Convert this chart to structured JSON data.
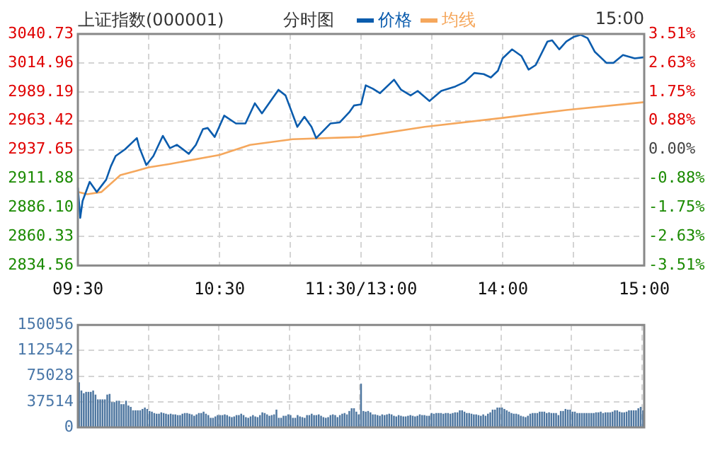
{
  "chart_data": [
    {
      "type": "line",
      "title": "上证指数(000001)",
      "subtitle": "分时图",
      "annotations": [
        "15:00"
      ],
      "legend": "top",
      "grid": true,
      "categories": [
        "09:30",
        null,
        null,
        null,
        null,
        null,
        null,
        null,
        null,
        null,
        null,
        null,
        null,
        null,
        null,
        null,
        null,
        null,
        null,
        null,
        null,
        null,
        null,
        null,
        null,
        null,
        null,
        null,
        null,
        null,
        null,
        null,
        null,
        null,
        null,
        null,
        null,
        null,
        null,
        null,
        null,
        null,
        null,
        null,
        null,
        null,
        null,
        null,
        null,
        null,
        null,
        null,
        null,
        null,
        null,
        null,
        null,
        null,
        null,
        null,
        "10:30",
        null,
        null,
        null,
        null,
        null,
        null,
        null,
        null,
        null,
        null,
        null,
        null,
        null,
        null,
        null,
        null,
        null,
        null,
        null,
        null,
        null,
        null,
        null,
        null,
        null,
        null,
        null,
        null,
        null,
        null,
        null,
        null,
        null,
        null,
        null,
        null,
        null,
        null,
        null,
        null,
        null,
        null,
        null,
        null,
        null,
        null,
        null,
        null,
        null,
        null,
        null,
        null,
        null,
        null,
        null,
        null,
        null,
        null,
        null,
        "11:30/13:00",
        null,
        null,
        null,
        null,
        null,
        null,
        null,
        null,
        null,
        null,
        null,
        null,
        null,
        null,
        null,
        null,
        null,
        null,
        null,
        null,
        null,
        null,
        null,
        null,
        null,
        null,
        null,
        null,
        null,
        null,
        null,
        null,
        null,
        null,
        null,
        null,
        null,
        null,
        null,
        null,
        null,
        null,
        null,
        null,
        null,
        null,
        null,
        null,
        null,
        null,
        null,
        null,
        null,
        null,
        null,
        null,
        null,
        null,
        null,
        "14:00",
        null,
        null,
        null,
        null,
        null,
        null,
        null,
        null,
        null,
        null,
        null,
        null,
        null,
        null,
        null,
        null,
        null,
        null,
        null,
        null,
        null,
        null,
        null,
        null,
        null,
        null,
        null,
        null,
        null,
        null,
        null,
        null,
        null,
        null,
        null,
        null,
        null,
        null,
        null,
        null,
        null,
        null,
        null,
        null,
        null,
        null,
        null,
        null,
        null,
        null,
        null,
        null,
        null,
        null,
        null,
        null,
        null,
        null,
        null,
        "15:00"
      ],
      "ylim": [
        2834.56,
        3040.73
      ],
      "yticks": [
        2834.56,
        2860.33,
        {
          "value": 2886.1,
          "label": "2886.10"
        },
        2911.88,
        2937.65,
        2963.42,
        2989.19,
        3014.96,
        3040.73
      ],
      "y2lim": [
        -3.51,
        3.51
      ],
      "y2ticks": [
        {
          "value": -3.51,
          "label": "-3.51%"
        },
        {
          "value": -2.63,
          "label": "-2.63%"
        },
        {
          "value": -1.75,
          "label": "-1.75%"
        },
        {
          "value": -0.88,
          "label": "-0.88%"
        },
        {
          "value": 0,
          "label": "0.00%"
        },
        {
          "value": 0.88,
          "label": "0.88%"
        },
        {
          "value": 1.75,
          "label": "1.75%"
        },
        {
          "value": 2.63,
          "label": "2.63%"
        },
        {
          "value": 3.51,
          "label": "3.51%"
        }
      ],
      "series": [
        {
          "name": "价格",
          "color": "#0b5cad",
          "values": [
            2904,
            2877,
            2892,
            null,
            null,
            2909,
            null,
            null,
            2900,
            null,
            null,
            null,
            2911,
            null,
            2923,
            null,
            2932,
            null,
            null,
            null,
            2938,
            null,
            null,
            null,
            null,
            2948,
            2940,
            null,
            null,
            2924,
            null,
            null,
            2932,
            null,
            null,
            null,
            2950,
            null,
            null,
            2939,
            null,
            null,
            2942,
            null,
            null,
            null,
            null,
            2934,
            null,
            null,
            2942,
            null,
            null,
            2956,
            null,
            2957,
            null,
            null,
            2949,
            null,
            null,
            null,
            2968,
            null,
            null,
            null,
            null,
            2961,
            null,
            null,
            null,
            2961,
            null,
            null,
            null,
            2979,
            null,
            null,
            2970,
            null,
            null,
            2979,
            null,
            null,
            null,
            2991,
            null,
            null,
            2986,
            null,
            null,
            null,
            null,
            2958,
            null,
            null,
            2967,
            null,
            null,
            2958,
            null,
            2948,
            null,
            null,
            null,
            null,
            null,
            2961,
            null,
            null,
            null,
            2962,
            null,
            null,
            null,
            2971,
            null,
            2977,
            null,
            null,
            2978,
            null,
            2995,
            null,
            null,
            2992,
            null,
            null,
            2988,
            null,
            null,
            null,
            null,
            null,
            3000,
            null,
            null,
            2991,
            null,
            null,
            null,
            2986,
            null,
            null,
            2990,
            null,
            null,
            null,
            null,
            2981,
            null,
            null,
            null,
            null,
            2990,
            null,
            null,
            null,
            null,
            null,
            2994,
            null,
            null,
            null,
            2998,
            null,
            null,
            null,
            3006,
            null,
            null,
            null,
            3005,
            null,
            null,
            3002,
            null,
            null,
            3008,
            null,
            3019,
            null,
            null,
            null,
            3027,
            null,
            null,
            null,
            3021,
            null,
            null,
            3009,
            null,
            null,
            3013,
            null,
            null,
            null,
            null,
            3034,
            null,
            3035,
            null,
            null,
            3027,
            null,
            null,
            3034,
            null,
            null,
            3038,
            null,
            null,
            3040,
            null,
            null,
            3037,
            null,
            null,
            3025,
            null,
            null,
            null,
            null,
            3015,
            null,
            null,
            3015,
            null,
            null,
            null,
            3022,
            null,
            null,
            null,
            null,
            3019,
            null,
            null,
            null,
            3020
          ]
        },
        {
          "name": "均线",
          "color": "#f5a75c",
          "values": [
            2900,
            null,
            null,
            null,
            2898,
            null,
            null,
            null,
            null,
            null,
            2900,
            null,
            null,
            null,
            null,
            null,
            null,
            null,
            2915,
            null,
            null,
            null,
            null,
            null,
            null,
            2919,
            null,
            null,
            null,
            null,
            2922,
            null,
            null,
            null,
            null,
            null,
            null,
            null,
            null,
            2925,
            null,
            null,
            null,
            null,
            null,
            null,
            null,
            null,
            null,
            null,
            null,
            null,
            null,
            null,
            null,
            null,
            null,
            null,
            null,
            null,
            2933,
            null,
            null,
            null,
            null,
            null,
            null,
            null,
            null,
            null,
            null,
            null,
            null,
            2942,
            null,
            null,
            null,
            null,
            null,
            null,
            null,
            null,
            null,
            null,
            null,
            null,
            null,
            null,
            null,
            null,
            null,
            2947,
            null,
            null,
            null,
            null,
            null,
            null,
            null,
            null,
            null,
            null,
            null,
            null,
            null,
            null,
            null,
            null,
            null,
            null,
            null,
            null,
            null,
            null,
            null,
            null,
            null,
            null,
            null,
            2949,
            null,
            null,
            null,
            null,
            null,
            null,
            null,
            null,
            null,
            null,
            null,
            null,
            null,
            null,
            null,
            null,
            null,
            null,
            null,
            null,
            null,
            null,
            null,
            null,
            null,
            null,
            null,
            2958,
            null,
            null,
            null,
            null,
            null,
            null,
            null,
            null,
            null,
            null,
            null,
            null,
            null,
            null,
            null,
            null,
            null,
            null,
            null,
            null,
            null,
            null,
            null,
            null,
            null,
            null,
            null,
            null,
            null,
            null,
            null,
            null,
            2966,
            null,
            null,
            null,
            null,
            null,
            null,
            null,
            null,
            null,
            null,
            null,
            null,
            null,
            null,
            null,
            null,
            null,
            null,
            null,
            null,
            null,
            null,
            null,
            null,
            null,
            null,
            2973,
            null,
            null,
            null,
            null,
            null,
            null,
            null,
            null,
            null,
            null,
            null,
            null,
            null,
            null,
            null,
            null,
            null,
            null,
            null,
            null,
            null,
            null,
            null,
            null,
            null,
            null,
            null,
            null,
            null,
            null,
            null,
            null,
            2980
          ]
        }
      ]
    },
    {
      "type": "bar",
      "grid": true,
      "tick_labels": "y",
      "color": "#4f77a0",
      "categories": [
        null,
        null,
        null,
        null,
        null,
        null,
        null,
        null,
        null,
        null,
        null,
        null,
        null,
        null,
        null,
        null,
        null,
        null,
        null,
        null,
        null,
        null,
        null,
        null,
        null,
        null,
        null,
        null,
        null,
        null,
        null,
        null,
        null,
        null,
        null,
        null,
        null,
        null,
        null,
        null,
        null,
        null,
        null,
        null,
        null,
        null,
        null,
        null,
        null,
        null,
        null,
        null,
        null,
        null,
        null,
        null,
        null,
        null,
        null,
        null,
        null,
        null,
        null,
        null,
        null,
        null,
        null,
        null,
        null,
        null,
        null,
        null,
        null,
        null,
        null,
        null,
        null,
        null,
        null,
        null,
        null,
        null,
        null,
        null,
        null,
        null,
        null,
        null,
        null,
        null,
        null,
        null,
        null,
        null,
        null,
        null,
        null,
        null,
        null,
        null,
        null,
        null,
        null,
        null,
        null,
        null,
        null,
        null,
        null,
        null,
        null,
        null,
        null,
        null,
        null,
        null,
        null,
        null,
        null,
        null,
        null,
        null,
        null,
        null,
        null,
        null,
        null,
        null,
        null,
        null,
        null,
        null,
        null,
        null,
        null,
        null,
        null,
        null,
        null,
        null,
        null,
        null,
        null,
        null,
        null,
        null,
        null,
        null,
        null,
        null,
        null,
        null,
        null,
        null,
        null,
        null,
        null,
        null,
        null,
        null,
        null,
        null,
        null,
        null,
        null,
        null,
        null,
        null,
        null,
        null,
        null,
        null,
        null,
        null,
        null,
        null,
        null,
        null,
        null,
        null,
        null,
        null,
        null,
        null,
        null,
        null,
        null,
        null,
        null,
        null,
        null,
        null,
        null,
        null,
        null,
        null,
        null,
        null,
        null,
        null,
        null,
        null,
        null,
        null,
        null,
        null,
        null,
        null,
        null,
        null,
        null,
        null,
        null,
        null,
        null,
        null,
        null,
        null,
        null,
        null,
        null,
        null,
        null,
        null,
        null,
        null,
        null,
        null,
        null,
        null,
        null,
        null,
        null,
        null,
        null,
        null,
        null,
        null,
        null,
        null,
        null
      ],
      "ylim": [
        0,
        150056
      ],
      "yticks": [
        0,
        37514,
        75028,
        112542,
        150056
      ],
      "values": [
        66000,
        54000,
        50000,
        52000,
        52000,
        52000,
        54000,
        48000,
        41000,
        41000,
        41000,
        41000,
        48000,
        49000,
        37000,
        37000,
        39000,
        39000,
        34000,
        34000,
        39000,
        32000,
        30000,
        25000,
        25000,
        25000,
        25000,
        27000,
        29000,
        27000,
        24000,
        23000,
        21000,
        20000,
        20000,
        22000,
        21000,
        20000,
        19000,
        20000,
        19000,
        19000,
        18000,
        18000,
        20000,
        21000,
        21000,
        20000,
        19000,
        17000,
        19000,
        21000,
        21000,
        23000,
        20000,
        18000,
        14000,
        14000,
        16000,
        18000,
        18000,
        18000,
        19000,
        18000,
        16000,
        15000,
        16000,
        18000,
        18000,
        20000,
        18000,
        15000,
        14000,
        16000,
        18000,
        16000,
        15000,
        18000,
        22000,
        21000,
        19000,
        17000,
        18000,
        19000,
        26000,
        14000,
        14000,
        17000,
        17000,
        19000,
        18000,
        14000,
        14000,
        18000,
        16000,
        15000,
        14000,
        18000,
        18000,
        20000,
        18000,
        18000,
        19000,
        17000,
        15000,
        14000,
        15000,
        18000,
        19000,
        18000,
        15000,
        18000,
        20000,
        21000,
        19000,
        24000,
        28000,
        28000,
        23000,
        19000,
        64000,
        24000,
        23000,
        24000,
        22000,
        19000,
        19000,
        18000,
        17000,
        19000,
        18000,
        19000,
        20000,
        19000,
        17000,
        16000,
        18000,
        17000,
        16000,
        16000,
        17000,
        18000,
        17000,
        16000,
        17000,
        19000,
        18000,
        18000,
        17000,
        17000,
        21000,
        20000,
        21000,
        21000,
        21000,
        20000,
        21000,
        21000,
        20000,
        21000,
        22000,
        22000,
        25000,
        25000,
        23000,
        21000,
        21000,
        20000,
        19000,
        19000,
        18000,
        17000,
        19000,
        17000,
        20000,
        22000,
        26000,
        26000,
        29000,
        29000,
        29000,
        27000,
        25000,
        23000,
        21000,
        20000,
        20000,
        19000,
        17000,
        16000,
        15000,
        17000,
        20000,
        21000,
        21000,
        21000,
        23000,
        23000,
        23000,
        21000,
        22000,
        21000,
        21000,
        21000,
        18000,
        24000,
        24000,
        27000,
        26000,
        26000,
        23000,
        23000,
        21000,
        21000,
        21000,
        21000,
        21000,
        21000,
        21000,
        21000,
        22000,
        22000,
        23000,
        21000,
        22000,
        22000,
        22000,
        23000,
        25000,
        25000,
        23000,
        22000,
        22000,
        23000,
        25000,
        25000,
        25000,
        25000,
        28000,
        30000,
        25000
      ]
    }
  ]
}
